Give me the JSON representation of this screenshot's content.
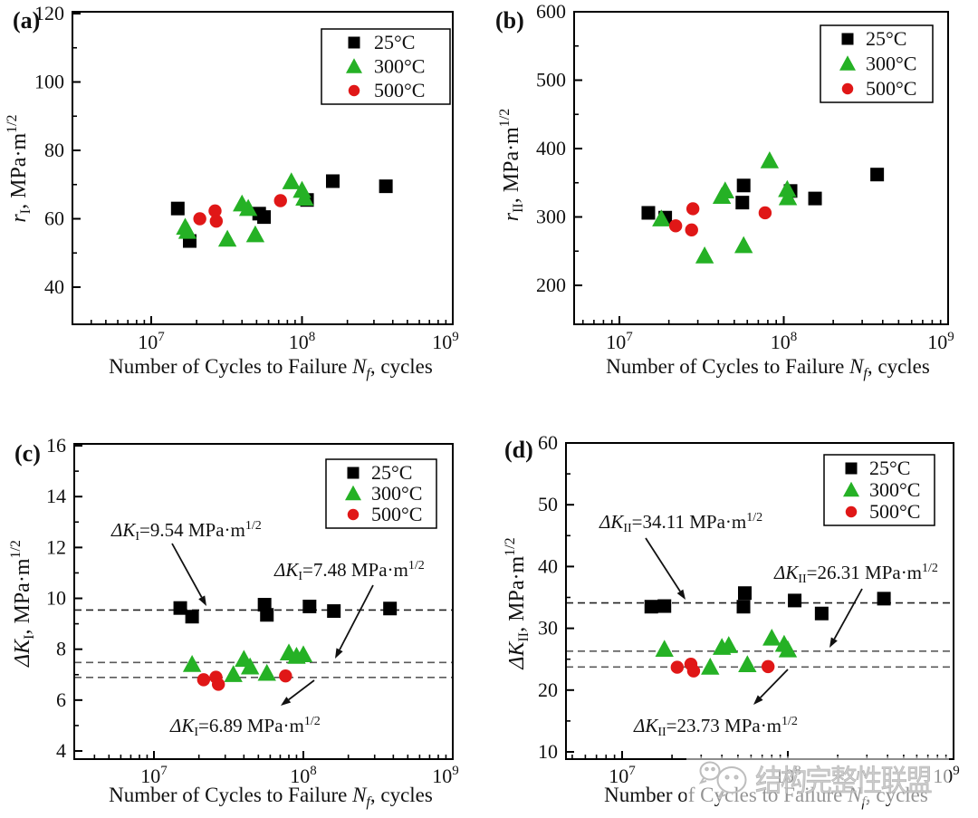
{
  "figure": {
    "xlabel": {
      "prefix": "Number of Cycles to Failure ",
      "nsym": "N",
      "nsub": "f",
      "suffix": ", cycles"
    },
    "xtick_exponents": [
      7,
      8,
      9
    ],
    "legend": {
      "position": "top-right",
      "items": [
        {
          "label": "25°C",
          "marker": "square",
          "color": "#000000"
        },
        {
          "label": "300°C",
          "marker": "triangle",
          "color": "#25B125"
        },
        {
          "label": "500°C",
          "marker": "circle",
          "color": "#E01717"
        }
      ]
    }
  },
  "watermark": {
    "icon": "wechat-chat-bubbles-icon",
    "text": "结构完整性联盟",
    "color": "#c7c7c7"
  },
  "chart_data": [
    {
      "id": "a",
      "tag": "(a)",
      "type": "scatter",
      "xlabel": "Number of Cycles to Failure Nf, cycles",
      "ylabel": {
        "sym": "r",
        "sub": "I",
        "rest": ", MPa·m",
        "sup": "1/2"
      },
      "xscale": "log",
      "xlim": [
        3000000,
        1000000000
      ],
      "ylim": [
        29,
        120.5
      ],
      "yticks": [
        40,
        60,
        80,
        100,
        120
      ],
      "yticks_minor": [
        50,
        70,
        90,
        110
      ],
      "grid": false,
      "series": [
        {
          "name": "25°C",
          "marker": "square",
          "color": "#000000",
          "points": [
            [
              15000000,
              63
            ],
            [
              18000000,
              53.5
            ],
            [
              52000000,
              61.5
            ],
            [
              56000000,
              60.5
            ],
            [
              108000000,
              65.5
            ],
            [
              160000000,
              71
            ],
            [
              360000000,
              69.5
            ]
          ]
        },
        {
          "name": "300°C",
          "marker": "triangle",
          "color": "#25B125",
          "points": [
            [
              16800000,
              57.5
            ],
            [
              17400000,
              56.3
            ],
            [
              32000000,
              54
            ],
            [
              40000000,
              64.3
            ],
            [
              44000000,
              63
            ],
            [
              49000000,
              55.3
            ],
            [
              85000000,
              70.8
            ],
            [
              100000000,
              68.3
            ],
            [
              104000000,
              66
            ]
          ]
        },
        {
          "name": "500°C",
          "marker": "circle",
          "color": "#E01717",
          "points": [
            [
              21000000,
              60
            ],
            [
              26500000,
              62.3
            ],
            [
              27000000,
              59.3
            ],
            [
              72000000,
              65.3
            ]
          ]
        }
      ],
      "ref_lines": [],
      "annotations": []
    },
    {
      "id": "b",
      "tag": "(b)",
      "type": "scatter",
      "xlabel": "Number of Cycles to Failure Nf, cycles",
      "ylabel": {
        "sym": "r",
        "sub": "II",
        "rest": ", MPa·m",
        "sup": "1/2"
      },
      "xscale": "log",
      "xlim": [
        5300000,
        1000000000
      ],
      "ylim": [
        143,
        600
      ],
      "yticks": [
        200,
        300,
        400,
        500,
        600
      ],
      "yticks_minor": [
        250,
        350,
        450,
        550
      ],
      "grid": false,
      "series": [
        {
          "name": "25°C",
          "marker": "square",
          "color": "#000000",
          "points": [
            [
              15000000,
              306
            ],
            [
              19000000,
              299
            ],
            [
              57000000,
              346
            ],
            [
              56000000,
              321
            ],
            [
              110000000,
              338
            ],
            [
              155000000,
              327
            ],
            [
              370000000,
              362
            ]
          ]
        },
        {
          "name": "300°C",
          "marker": "triangle",
          "color": "#25B125",
          "points": [
            [
              18000000,
              297
            ],
            [
              33000000,
              243
            ],
            [
              42000000,
              330
            ],
            [
              44000000,
              338
            ],
            [
              57000000,
              258
            ],
            [
              82000000,
              382
            ],
            [
              105000000,
              340
            ],
            [
              106000000,
              328
            ]
          ]
        },
        {
          "name": "500°C",
          "marker": "circle",
          "color": "#E01717",
          "points": [
            [
              22000000,
              287
            ],
            [
              28000000,
              312
            ],
            [
              27500000,
              281
            ],
            [
              77000000,
              306
            ]
          ]
        }
      ],
      "ref_lines": [],
      "annotations": []
    },
    {
      "id": "c",
      "tag": "(c)",
      "type": "scatter",
      "xlabel": "Number of Cycles to Failure Nf, cycles",
      "ylabel": {
        "sym": "ΔK",
        "sub": "I",
        "rest": ", MPa·m",
        "sup": "1/2"
      },
      "xscale": "log",
      "xlim": [
        2900000,
        1000000000
      ],
      "ylim": [
        3.68,
        16.07
      ],
      "yticks": [
        4,
        6,
        8,
        10,
        12,
        14,
        16
      ],
      "yticks_minor": [
        5,
        7,
        9,
        11,
        13,
        15
      ],
      "grid": false,
      "series": [
        {
          "name": "25°C",
          "marker": "square",
          "color": "#000000",
          "points": [
            [
              15000000,
              9.62
            ],
            [
              18000000,
              9.28
            ],
            [
              55000000,
              9.75
            ],
            [
              57000000,
              9.35
            ],
            [
              110000000,
              9.68
            ],
            [
              160000000,
              9.5
            ],
            [
              380000000,
              9.6
            ]
          ]
        },
        {
          "name": "300°C",
          "marker": "triangle",
          "color": "#25B125",
          "points": [
            [
              18000000,
              7.4
            ],
            [
              34000000,
              7.0
            ],
            [
              40000000,
              7.6
            ],
            [
              44000000,
              7.3
            ],
            [
              57000000,
              7.05
            ],
            [
              80000000,
              7.85
            ],
            [
              90000000,
              7.72
            ],
            [
              100000000,
              7.78
            ]
          ]
        },
        {
          "name": "500°C",
          "marker": "circle",
          "color": "#E01717",
          "points": [
            [
              21500000,
              6.8
            ],
            [
              26000000,
              6.9
            ],
            [
              27000000,
              6.62
            ],
            [
              76000000,
              6.95
            ]
          ]
        }
      ],
      "ref_lines": [
        9.54,
        7.48,
        6.89
      ],
      "annotations": [
        {
          "sym": "ΔK",
          "sub": "I",
          "value": "9.54",
          "unit": " MPa·m",
          "sup": "1/2"
        },
        {
          "sym": "ΔK",
          "sub": "I",
          "value": "7.48",
          "unit": " MPa·m",
          "sup": "1/2"
        },
        {
          "sym": "ΔK",
          "sub": "I",
          "value": "6.89",
          "unit": " MPa·m",
          "sup": "1/2"
        }
      ]
    },
    {
      "id": "d",
      "tag": "(d)",
      "type": "scatter",
      "xlabel": "Number of Cycles to Failure Nf, cycles",
      "ylabel": {
        "sym": "ΔK",
        "sub": "II",
        "rest": ", MPa·m",
        "sup": "1/2"
      },
      "xscale": "log",
      "xlim": [
        4600000,
        1000000000
      ],
      "ylim": [
        8.8,
        60
      ],
      "yticks": [
        10,
        20,
        30,
        40,
        50,
        60
      ],
      "yticks_minor": [
        15,
        25,
        35,
        45,
        55
      ],
      "grid": false,
      "series": [
        {
          "name": "25°C",
          "marker": "square",
          "color": "#000000",
          "points": [
            [
              15000000,
              33.5
            ],
            [
              18000000,
              33.6
            ],
            [
              55000000,
              35.7
            ],
            [
              54000000,
              33.5
            ],
            [
              110000000,
              34.5
            ],
            [
              160000000,
              32.4
            ],
            [
              380000000,
              34.8
            ]
          ]
        },
        {
          "name": "300°C",
          "marker": "triangle",
          "color": "#25B125",
          "points": [
            [
              18000000,
              26.6
            ],
            [
              34000000,
              23.7
            ],
            [
              40000000,
              26.9
            ],
            [
              44000000,
              27.2
            ],
            [
              57000000,
              24.1
            ],
            [
              80000000,
              28.4
            ],
            [
              95000000,
              27.4
            ],
            [
              100000000,
              26.5
            ]
          ]
        },
        {
          "name": "500°C",
          "marker": "circle",
          "color": "#E01717",
          "points": [
            [
              21500000,
              23.7
            ],
            [
              26000000,
              24.2
            ],
            [
              27000000,
              23.1
            ],
            [
              76000000,
              23.8
            ]
          ]
        }
      ],
      "ref_lines": [
        34.11,
        26.31,
        23.73
      ],
      "annotations": [
        {
          "sym": "ΔK",
          "sub": "II",
          "value": "34.11",
          "unit": " MPa·m",
          "sup": "1/2"
        },
        {
          "sym": "ΔK",
          "sub": "II",
          "value": "26.31",
          "unit": " MPa·m",
          "sup": "1/2"
        },
        {
          "sym": "ΔK",
          "sub": "II",
          "value": "23.73",
          "unit": " MPa·m",
          "sup": "1/2"
        }
      ]
    }
  ]
}
